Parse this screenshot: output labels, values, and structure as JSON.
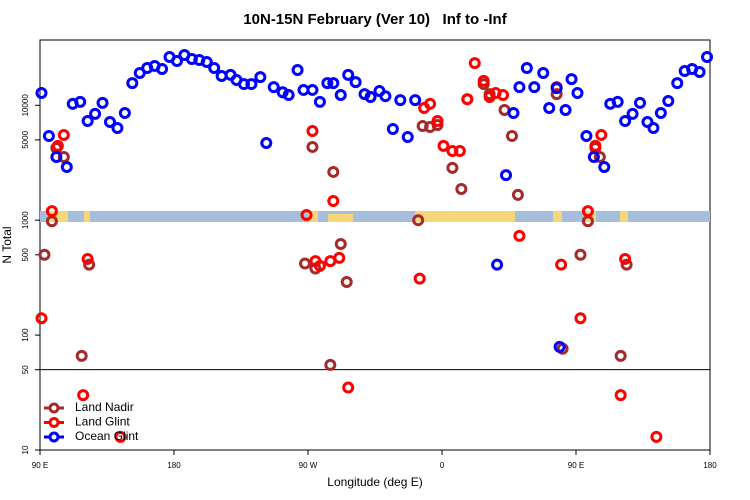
{
  "chart_data": {
    "type": "scatter",
    "title": "10N-15N February (Ver 10)   Inf to -Inf",
    "xlabel": "Longitude (deg E)",
    "ylabel": "N Total",
    "xlim": [
      90,
      540
    ],
    "ylim": [
      10,
      37000
    ],
    "log_y": true,
    "xticks": [
      {
        "value": 90,
        "label": "90 E"
      },
      {
        "value": 180,
        "label": "180"
      },
      {
        "value": 270,
        "label": "90 W"
      },
      {
        "value": 360,
        "label": "0"
      },
      {
        "value": 450,
        "label": "90 E"
      },
      {
        "value": 540,
        "label": "180"
      }
    ],
    "yticks": [
      10,
      50,
      100,
      500,
      1000,
      5000,
      10000
    ],
    "reference_line": 50,
    "legend": "bottom-left",
    "series": [
      {
        "name": "Land Nadir",
        "color": "#a52a2a",
        "x": [
          93,
          98,
          101,
          106,
          118,
          123,
          268,
          273,
          275,
          285,
          287,
          292,
          296,
          344,
          347,
          352,
          357,
          367,
          373,
          377,
          388,
          392,
          402,
          407,
          411,
          437,
          441,
          453,
          458,
          463,
          466,
          480,
          484
        ],
        "values": [
          500,
          980,
          4250,
          3550,
          66,
          410,
          420,
          4340,
          380,
          55,
          2630,
          620,
          290,
          1000,
          6600,
          6470,
          6740,
          2850,
          1870,
          11300,
          15300,
          12500,
          9100,
          5410,
          1660,
          12500,
          76,
          500,
          980,
          4250,
          3550,
          66,
          410
        ]
      },
      {
        "name": "Land Glint",
        "color": "#ff0000",
        "x": [
          91,
          98,
          102,
          106,
          119,
          122,
          144,
          269,
          273,
          275,
          278,
          285,
          287,
          291,
          297,
          345,
          348,
          352,
          357,
          361,
          367,
          372,
          377,
          382,
          388,
          392,
          396,
          401,
          412,
          437,
          440,
          453,
          458,
          463,
          467,
          480,
          483,
          504
        ],
        "values": [
          140,
          1200,
          4430,
          5520,
          30,
          460,
          13,
          1110,
          5980,
          440,
          400,
          440,
          1470,
          470,
          35,
          310,
          9480,
          10300,
          7300,
          4430,
          4000,
          4000,
          11300,
          23300,
          16300,
          11800,
          12800,
          12300,
          730,
          14400,
          410,
          140,
          1200,
          4430,
          5520,
          30,
          460,
          13
        ]
      },
      {
        "name": "Ocean Glint",
        "color": "#0000ff",
        "x": [
          91,
          96,
          101,
          108,
          112,
          117,
          122,
          127,
          132,
          137,
          142,
          147,
          152,
          157,
          162,
          167,
          172,
          177,
          182,
          187,
          192,
          197,
          202,
          207,
          212,
          218,
          222,
          227,
          232,
          238,
          242,
          247,
          253,
          257,
          263,
          267,
          273,
          278,
          283,
          287,
          292,
          297,
          302,
          308,
          312,
          318,
          322,
          327,
          332,
          337,
          342,
          397,
          403,
          408,
          412,
          417,
          422,
          428,
          432,
          437,
          439,
          443,
          447,
          451,
          457,
          462,
          469,
          473,
          478,
          483,
          488,
          493,
          498,
          502,
          507,
          512,
          518,
          523,
          528,
          533,
          538
        ],
        "values": [
          12800,
          5410,
          3550,
          2900,
          10300,
          10700,
          7300,
          8410,
          10500,
          7160,
          6340,
          8570,
          15600,
          19100,
          21100,
          22000,
          20700,
          26300,
          24300,
          27400,
          25300,
          24800,
          23800,
          21100,
          18000,
          18400,
          16600,
          15300,
          15300,
          17600,
          4700,
          14400,
          13000,
          12300,
          20300,
          13600,
          13600,
          10700,
          15600,
          15600,
          12300,
          18400,
          15900,
          12500,
          11800,
          13300,
          12000,
          6220,
          11100,
          5300,
          11100,
          410,
          2470,
          8570,
          14400,
          21100,
          14400,
          19100,
          9480,
          14100,
          79,
          9100,
          16900,
          12800,
          5410,
          3550,
          2900,
          10300,
          10700,
          7300,
          8410,
          10500,
          7160,
          6340,
          8570,
          10900,
          15600,
          19900,
          20700,
          19500,
          26300
        ]
      }
    ]
  }
}
